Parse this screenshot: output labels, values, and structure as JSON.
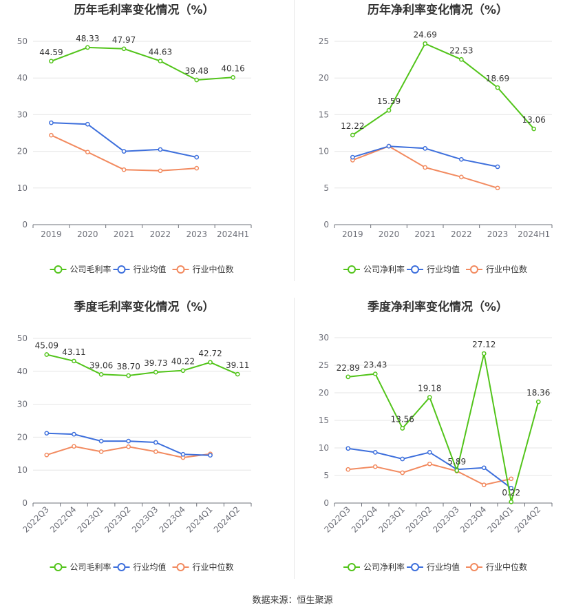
{
  "footer": {
    "source": "数据来源：恒生聚源"
  },
  "colors": {
    "green": "#52c41a",
    "blue": "#3d6fdc",
    "orange": "#f28a5f"
  },
  "chart_data": [
    {
      "type": "line",
      "title": "历年毛利率变化情况（%）",
      "categories": [
        "2019",
        "2020",
        "2021",
        "2022",
        "2023",
        "2024H1"
      ],
      "ylim": [
        0,
        50
      ],
      "yticks": [
        0,
        10,
        20,
        30,
        40,
        50
      ],
      "grid": true,
      "legend_position": "bottom",
      "series": [
        {
          "name": "公司毛利率",
          "color": "#52c41a",
          "labels": true,
          "values": [
            44.59,
            48.33,
            47.97,
            44.63,
            39.48,
            40.16
          ],
          "value_labels": [
            "44.59",
            "48.33",
            "47.97",
            "44.63",
            "39.48",
            "40.16"
          ]
        },
        {
          "name": "行业均值",
          "color": "#3d6fdc",
          "labels": false,
          "values": [
            27.8,
            27.4,
            20.0,
            20.5,
            18.4,
            null
          ]
        },
        {
          "name": "行业中位数",
          "color": "#f28a5f",
          "labels": false,
          "values": [
            24.4,
            19.8,
            15.0,
            14.7,
            15.4,
            null
          ]
        }
      ]
    },
    {
      "type": "line",
      "title": "历年净利率变化情况（%）",
      "categories": [
        "2019",
        "2020",
        "2021",
        "2022",
        "2023",
        "2024H1"
      ],
      "ylim": [
        0,
        25
      ],
      "yticks": [
        0,
        5,
        10,
        15,
        20,
        25
      ],
      "grid": true,
      "legend_position": "bottom",
      "series": [
        {
          "name": "公司净利率",
          "color": "#52c41a",
          "labels": true,
          "values": [
            12.22,
            15.59,
            24.69,
            22.53,
            18.69,
            13.06
          ],
          "value_labels": [
            "12.22",
            "15.59",
            "24.69",
            "22.53",
            "18.69",
            "13.06"
          ]
        },
        {
          "name": "行业均值",
          "color": "#3d6fdc",
          "labels": false,
          "values": [
            9.2,
            10.7,
            10.4,
            8.9,
            7.9,
            null
          ]
        },
        {
          "name": "行业中位数",
          "color": "#f28a5f",
          "labels": false,
          "values": [
            8.8,
            10.7,
            7.8,
            6.5,
            5.0,
            null
          ]
        }
      ]
    },
    {
      "type": "line",
      "title": "季度毛利率变化情况（%）",
      "categories": [
        "2022Q3",
        "2022Q4",
        "2023Q1",
        "2023Q2",
        "2023Q3",
        "2023Q4",
        "2024Q1",
        "2024Q2"
      ],
      "ylim": [
        0,
        50
      ],
      "yticks": [
        0,
        10,
        20,
        30,
        40,
        50
      ],
      "grid": true,
      "rotated_x_labels": true,
      "legend_position": "bottom",
      "series": [
        {
          "name": "公司毛利率",
          "color": "#52c41a",
          "labels": true,
          "values": [
            45.09,
            43.11,
            39.06,
            38.7,
            39.73,
            40.22,
            42.72,
            39.11
          ],
          "value_labels": [
            "45.09",
            "43.11",
            "39.06",
            "38.70",
            "39.73",
            "40.22",
            "42.72",
            "39.11"
          ]
        },
        {
          "name": "行业均值",
          "color": "#3d6fdc",
          "labels": false,
          "values": [
            21.2,
            20.9,
            18.8,
            18.8,
            18.4,
            14.8,
            14.5,
            null
          ]
        },
        {
          "name": "行业中位数",
          "color": "#f28a5f",
          "labels": false,
          "values": [
            14.6,
            17.2,
            15.6,
            17.1,
            15.6,
            13.8,
            14.9,
            null
          ]
        }
      ]
    },
    {
      "type": "line",
      "title": "季度净利率变化情况（%）",
      "categories": [
        "2022Q3",
        "2022Q4",
        "2023Q1",
        "2023Q2",
        "2023Q3",
        "2023Q4",
        "2024Q1",
        "2024Q2"
      ],
      "ylim": [
        0,
        30
      ],
      "yticks": [
        0,
        5,
        10,
        15,
        20,
        25,
        30
      ],
      "grid": true,
      "rotated_x_labels": true,
      "legend_position": "bottom",
      "series": [
        {
          "name": "公司净利率",
          "color": "#52c41a",
          "labels": true,
          "values": [
            22.89,
            23.43,
            13.56,
            19.18,
            5.89,
            27.12,
            0.22,
            18.36
          ],
          "value_labels": [
            "22.89",
            "23.43",
            "13.56",
            "19.18",
            "5.89",
            "27.12",
            "0.22",
            "18.36"
          ]
        },
        {
          "name": "行业均值",
          "color": "#3d6fdc",
          "labels": false,
          "values": [
            9.9,
            9.2,
            8.0,
            9.2,
            6.1,
            6.4,
            2.7,
            null
          ]
        },
        {
          "name": "行业中位数",
          "color": "#f28a5f",
          "labels": false,
          "values": [
            6.1,
            6.6,
            5.5,
            7.1,
            5.8,
            3.3,
            4.4,
            null
          ]
        }
      ]
    }
  ]
}
